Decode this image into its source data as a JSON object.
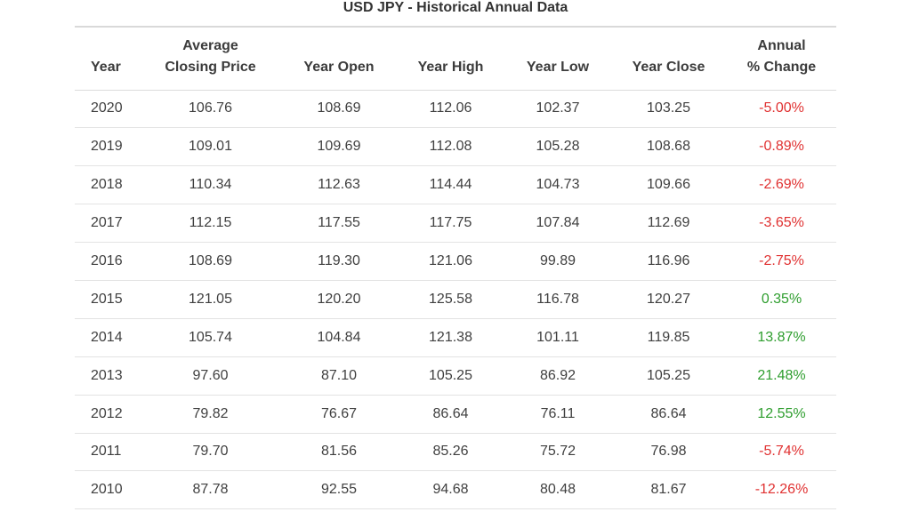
{
  "title": "USD JPY - Historical Annual Data",
  "headers": {
    "year": "Year",
    "avg_line1": "Average",
    "avg_line2": "Closing Price",
    "open": "Year Open",
    "high": "Year High",
    "low": "Year Low",
    "close": "Year Close",
    "chg_line1": "Annual",
    "chg_line2": "% Change"
  },
  "colors": {
    "negative": "#e03131",
    "positive": "#2f9e2f"
  },
  "rows": [
    {
      "year": "2020",
      "avg": "106.76",
      "open": "108.69",
      "high": "112.06",
      "low": "102.37",
      "close": "103.25",
      "change": "-5.00%",
      "trend": "neg"
    },
    {
      "year": "2019",
      "avg": "109.01",
      "open": "109.69",
      "high": "112.08",
      "low": "105.28",
      "close": "108.68",
      "change": "-0.89%",
      "trend": "neg"
    },
    {
      "year": "2018",
      "avg": "110.34",
      "open": "112.63",
      "high": "114.44",
      "low": "104.73",
      "close": "109.66",
      "change": "-2.69%",
      "trend": "neg"
    },
    {
      "year": "2017",
      "avg": "112.15",
      "open": "117.55",
      "high": "117.75",
      "low": "107.84",
      "close": "112.69",
      "change": "-3.65%",
      "trend": "neg"
    },
    {
      "year": "2016",
      "avg": "108.69",
      "open": "119.30",
      "high": "121.06",
      "low": "99.89",
      "close": "116.96",
      "change": "-2.75%",
      "trend": "neg"
    },
    {
      "year": "2015",
      "avg": "121.05",
      "open": "120.20",
      "high": "125.58",
      "low": "116.78",
      "close": "120.27",
      "change": "0.35%",
      "trend": "pos"
    },
    {
      "year": "2014",
      "avg": "105.74",
      "open": "104.84",
      "high": "121.38",
      "low": "101.11",
      "close": "119.85",
      "change": "13.87%",
      "trend": "pos"
    },
    {
      "year": "2013",
      "avg": "97.60",
      "open": "87.10",
      "high": "105.25",
      "low": "86.92",
      "close": "105.25",
      "change": "21.48%",
      "trend": "pos"
    },
    {
      "year": "2012",
      "avg": "79.82",
      "open": "76.67",
      "high": "86.64",
      "low": "76.11",
      "close": "86.64",
      "change": "12.55%",
      "trend": "pos"
    },
    {
      "year": "2011",
      "avg": "79.70",
      "open": "81.56",
      "high": "85.26",
      "low": "75.72",
      "close": "76.98",
      "change": "-5.74%",
      "trend": "neg"
    },
    {
      "year": "2010",
      "avg": "87.78",
      "open": "92.55",
      "high": "94.68",
      "low": "80.48",
      "close": "81.67",
      "change": "-12.26%",
      "trend": "neg"
    }
  ]
}
